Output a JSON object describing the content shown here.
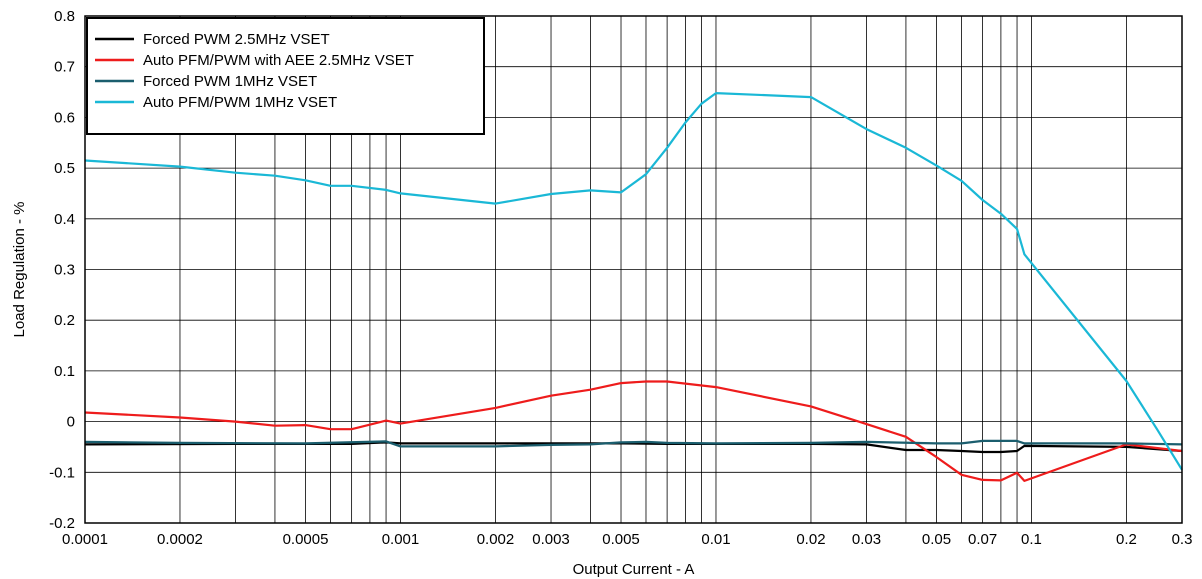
{
  "chart_data": {
    "type": "line",
    "xlabel": "Output Current - A",
    "ylabel": "Load Regulation - %",
    "xscale": "log",
    "xlim": [
      0.0001,
      0.3
    ],
    "ylim": [
      -0.2,
      0.8
    ],
    "x_ticks": [
      0.0001,
      0.0002,
      0.0005,
      0.001,
      0.002,
      0.003,
      0.005,
      0.01,
      0.02,
      0.03,
      0.05,
      0.07,
      0.1,
      0.2,
      0.3
    ],
    "x_tick_labels": [
      "0.0001",
      "0.0002",
      "0.0005",
      "0.001",
      "0.002",
      "0.003",
      "0.005",
      "0.01",
      "0.02",
      "0.03",
      "0.05",
      "0.07",
      "0.1",
      "0.2",
      "0.3"
    ],
    "y_ticks": [
      -0.2,
      -0.1,
      0,
      0.1,
      0.2,
      0.3,
      0.4,
      0.5,
      0.6,
      0.7,
      0.8
    ],
    "y_tick_labels": [
      "-0.2",
      "-0.1",
      "0",
      "0.1",
      "0.2",
      "0.3",
      "0.4",
      "0.5",
      "0.6",
      "0.7",
      "0.8"
    ],
    "grid": true,
    "legend_position": "top-left",
    "series": [
      {
        "name": "Forced PWM 2.5MHz VSET",
        "color": "#000000",
        "points": [
          [
            0.0001,
            -0.045
          ],
          [
            0.0003,
            -0.044
          ],
          [
            0.0007,
            -0.044
          ],
          [
            0.0009,
            -0.041
          ],
          [
            0.001,
            -0.043
          ],
          [
            0.002,
            -0.043
          ],
          [
            0.005,
            -0.043
          ],
          [
            0.007,
            -0.044
          ],
          [
            0.01,
            -0.044
          ],
          [
            0.02,
            -0.044
          ],
          [
            0.03,
            -0.045
          ],
          [
            0.04,
            -0.056
          ],
          [
            0.05,
            -0.056
          ],
          [
            0.06,
            -0.058
          ],
          [
            0.07,
            -0.06
          ],
          [
            0.08,
            -0.06
          ],
          [
            0.09,
            -0.058
          ],
          [
            0.095,
            -0.048
          ],
          [
            0.2,
            -0.05
          ],
          [
            0.3,
            -0.058
          ]
        ]
      },
      {
        "name": "Auto PFM/PWM with AEE 2.5MHz VSET",
        "color": "#ee1c1c",
        "points": [
          [
            0.0001,
            0.018
          ],
          [
            0.0002,
            0.008
          ],
          [
            0.0003,
            0.0
          ],
          [
            0.0004,
            -0.008
          ],
          [
            0.0005,
            -0.007
          ],
          [
            0.0006,
            -0.015
          ],
          [
            0.0007,
            -0.015
          ],
          [
            0.0009,
            0.002
          ],
          [
            0.001,
            -0.004
          ],
          [
            0.002,
            0.027
          ],
          [
            0.003,
            0.051
          ],
          [
            0.004,
            0.063
          ],
          [
            0.005,
            0.076
          ],
          [
            0.006,
            0.079
          ],
          [
            0.007,
            0.079
          ],
          [
            0.01,
            0.068
          ],
          [
            0.02,
            0.03
          ],
          [
            0.03,
            -0.005
          ],
          [
            0.04,
            -0.03
          ],
          [
            0.05,
            -0.07
          ],
          [
            0.06,
            -0.105
          ],
          [
            0.07,
            -0.115
          ],
          [
            0.08,
            -0.116
          ],
          [
            0.09,
            -0.101
          ],
          [
            0.095,
            -0.117
          ],
          [
            0.2,
            -0.045
          ],
          [
            0.3,
            -0.058
          ]
        ]
      },
      {
        "name": "Forced PWM 1MHz VSET",
        "color": "#1b5e6e",
        "points": [
          [
            0.0001,
            -0.04
          ],
          [
            0.0002,
            -0.042
          ],
          [
            0.0005,
            -0.043
          ],
          [
            0.0009,
            -0.039
          ],
          [
            0.001,
            -0.049
          ],
          [
            0.002,
            -0.049
          ],
          [
            0.003,
            -0.046
          ],
          [
            0.004,
            -0.045
          ],
          [
            0.005,
            -0.041
          ],
          [
            0.006,
            -0.04
          ],
          [
            0.007,
            -0.042
          ],
          [
            0.01,
            -0.043
          ],
          [
            0.02,
            -0.042
          ],
          [
            0.03,
            -0.04
          ],
          [
            0.05,
            -0.043
          ],
          [
            0.06,
            -0.043
          ],
          [
            0.07,
            -0.038
          ],
          [
            0.08,
            -0.038
          ],
          [
            0.09,
            -0.038
          ],
          [
            0.095,
            -0.043
          ],
          [
            0.2,
            -0.043
          ],
          [
            0.3,
            -0.045
          ]
        ]
      },
      {
        "name": "Auto PFM/PWM 1MHz VSET",
        "color": "#1ab8d6",
        "points": [
          [
            0.0001,
            0.515
          ],
          [
            0.0002,
            0.503
          ],
          [
            0.0003,
            0.491
          ],
          [
            0.0004,
            0.485
          ],
          [
            0.0005,
            0.476
          ],
          [
            0.0006,
            0.465
          ],
          [
            0.0007,
            0.465
          ],
          [
            0.0009,
            0.457
          ],
          [
            0.001,
            0.45
          ],
          [
            0.002,
            0.43
          ],
          [
            0.003,
            0.449
          ],
          [
            0.004,
            0.456
          ],
          [
            0.005,
            0.452
          ],
          [
            0.006,
            0.488
          ],
          [
            0.007,
            0.54
          ],
          [
            0.008,
            0.59
          ],
          [
            0.009,
            0.627
          ],
          [
            0.01,
            0.648
          ],
          [
            0.02,
            0.64
          ],
          [
            0.03,
            0.577
          ],
          [
            0.04,
            0.54
          ],
          [
            0.05,
            0.505
          ],
          [
            0.06,
            0.475
          ],
          [
            0.07,
            0.437
          ],
          [
            0.08,
            0.41
          ],
          [
            0.09,
            0.38
          ],
          [
            0.095,
            0.33
          ],
          [
            0.2,
            0.08
          ],
          [
            0.25,
            -0.015
          ],
          [
            0.3,
            -0.095
          ]
        ]
      }
    ]
  }
}
